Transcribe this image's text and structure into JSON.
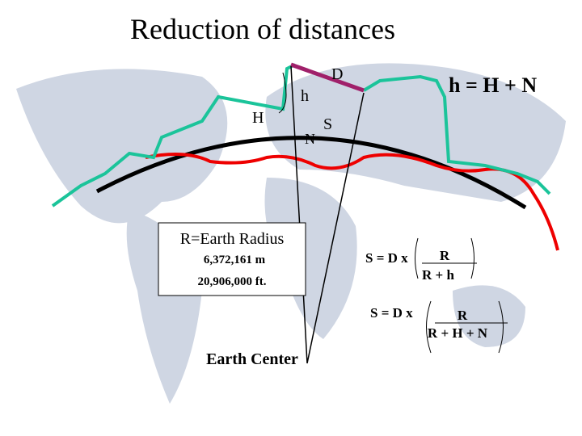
{
  "title": "Reduction of distances",
  "labels": {
    "D": "D",
    "h": "h",
    "H": "H",
    "S": "S",
    "N": "N",
    "relation": "h = H + N",
    "center": "Earth Center"
  },
  "radius_box": {
    "heading": "R=Earth Radius",
    "meters": "6,372,161 m",
    "feet": "20,906,000 ft."
  },
  "formulas": [
    {
      "lhs": "S = D x",
      "numerator": "R",
      "denominator": "R + h"
    },
    {
      "lhs": "S = D x",
      "numerator": "R",
      "denominator": "R + H + N"
    }
  ]
}
